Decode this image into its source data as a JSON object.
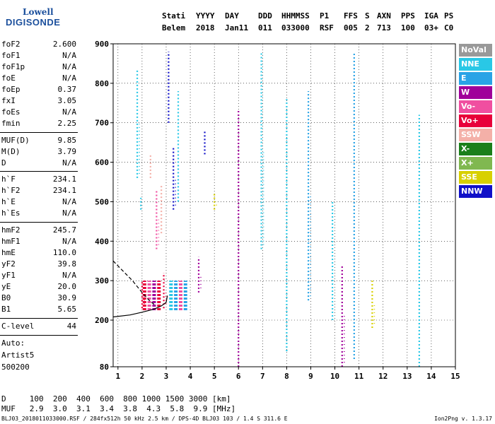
{
  "logo": {
    "top": "Lowell",
    "bottom": "DIGISONDE"
  },
  "header": {
    "labels": [
      "Stati",
      "YYYY",
      "DAY",
      "DDD",
      "HHMMSS",
      "P1",
      "FFS",
      "S",
      "AXN",
      "PPS",
      "IGA",
      "PS"
    ],
    "values": [
      "Belem",
      "2018",
      "Jan11",
      "011",
      "033000",
      "RSF",
      "005",
      "2",
      "713",
      "100",
      "03+",
      "C0"
    ]
  },
  "params": [
    {
      "k": "foF2",
      "v": "2.600"
    },
    {
      "k": "foF1",
      "v": "N/A"
    },
    {
      "k": "foF1p",
      "v": "N/A"
    },
    {
      "k": "foE",
      "v": "N/A"
    },
    {
      "k": "foEp",
      "v": "0.37"
    },
    {
      "k": "fxI",
      "v": "3.05"
    },
    {
      "k": "foEs",
      "v": "N/A"
    },
    {
      "k": "fmin",
      "v": "2.25"
    },
    {
      "k": "MUF(D)",
      "v": "9.85"
    },
    {
      "k": "M(D)",
      "v": "3.79"
    },
    {
      "k": "D",
      "v": "N/A"
    },
    {
      "k": "h`F",
      "v": "234.1"
    },
    {
      "k": "h`F2",
      "v": "234.1"
    },
    {
      "k": "h`E",
      "v": "N/A"
    },
    {
      "k": "h`Es",
      "v": "N/A"
    },
    {
      "k": "hmF2",
      "v": "245.7"
    },
    {
      "k": "hmF1",
      "v": "N/A"
    },
    {
      "k": "hmE",
      "v": "110.0"
    },
    {
      "k": "yF2",
      "v": "39.8"
    },
    {
      "k": "yF1",
      "v": "N/A"
    },
    {
      "k": "yE",
      "v": "20.0"
    },
    {
      "k": "B0",
      "v": "30.9"
    },
    {
      "k": "B1",
      "v": "5.65"
    },
    {
      "k": "C-level",
      "v": "44"
    }
  ],
  "auto": [
    "Auto:",
    "Artist5",
    "500200"
  ],
  "legend": [
    {
      "label": "NoVal",
      "color": "#999999"
    },
    {
      "label": "NNE",
      "color": "#29c8e6"
    },
    {
      "label": "E",
      "color": "#29a3e6"
    },
    {
      "label": "W",
      "color": "#a0009a"
    },
    {
      "label": "Vo-",
      "color": "#f04fa0"
    },
    {
      "label": "Vo+",
      "color": "#e8003a"
    },
    {
      "label": "SSW",
      "color": "#f4b0a8"
    },
    {
      "label": "X-",
      "color": "#1a7f1a"
    },
    {
      "label": "X+",
      "color": "#80b850"
    },
    {
      "label": "SSE",
      "color": "#d8d000"
    },
    {
      "label": "NNW",
      "color": "#1010c8"
    }
  ],
  "footer": {
    "d_row": "D     100  200  400  600  800 1000 1500 3000 [km]",
    "muf_row": "MUF   2.9  3.0  3.1  3.4  3.8  4.3  5.8  9.9 [MHz]",
    "file_info": "BLJ03_2018011033000.RSF / 284fx512h 50 kHz 2.5 km / DPS-4D BLJ03 103 / 1.4 S 311.6 E",
    "version": "Ion2Png v. 1.3.17"
  },
  "chart_data": {
    "type": "scatter",
    "title": "",
    "xlabel": "",
    "ylabel": "",
    "xlim": [
      0.8,
      15.0
    ],
    "ylim": [
      80,
      900
    ],
    "x_ticks": [
      1,
      2,
      3,
      4,
      5,
      6,
      7,
      8,
      9,
      10,
      11,
      12,
      13,
      14,
      15
    ],
    "y_ticks": [
      80,
      200,
      300,
      400,
      500,
      600,
      700,
      800,
      900
    ],
    "grid": true,
    "legend_position": "right",
    "trace_curves": [
      {
        "style": "solid",
        "points": [
          [
            0.8,
            208
          ],
          [
            1.5,
            213
          ],
          [
            2.0,
            220
          ],
          [
            2.5,
            228
          ],
          [
            2.8,
            236
          ],
          [
            3.0,
            245
          ],
          [
            3.05,
            262
          ]
        ]
      },
      {
        "style": "dashed",
        "points": [
          [
            0.8,
            350
          ],
          [
            1.2,
            325
          ],
          [
            1.6,
            300
          ],
          [
            2.0,
            270
          ],
          [
            2.3,
            250
          ],
          [
            2.5,
            240
          ]
        ]
      }
    ],
    "echo_columns": [
      {
        "x": 1.8,
        "y0": 560,
        "y1": 835,
        "color": "NNE"
      },
      {
        "x": 1.95,
        "y0": 480,
        "y1": 510,
        "color": "NNE"
      },
      {
        "x": 2.0,
        "y0": 230,
        "y1": 300,
        "color": "Vo+"
      },
      {
        "x": 2.35,
        "y0": 560,
        "y1": 620,
        "color": "SSW"
      },
      {
        "x": 2.6,
        "y0": 380,
        "y1": 530,
        "color": "Vo-"
      },
      {
        "x": 2.8,
        "y0": 420,
        "y1": 540,
        "color": "SSW"
      },
      {
        "x": 2.9,
        "y0": 230,
        "y1": 320,
        "color": "Vo+"
      },
      {
        "x": 3.1,
        "y0": 700,
        "y1": 880,
        "color": "NNW"
      },
      {
        "x": 3.3,
        "y0": 480,
        "y1": 640,
        "color": "NNW"
      },
      {
        "x": 3.5,
        "y0": 500,
        "y1": 780,
        "color": "NNE"
      },
      {
        "x": 4.35,
        "y0": 270,
        "y1": 360,
        "color": "W"
      },
      {
        "x": 4.6,
        "y0": 620,
        "y1": 680,
        "color": "NNW"
      },
      {
        "x": 5.0,
        "y0": 480,
        "y1": 520,
        "color": "SSE"
      },
      {
        "x": 6.0,
        "y0": 80,
        "y1": 730,
        "color": "W"
      },
      {
        "x": 6.95,
        "y0": 380,
        "y1": 880,
        "color": "NNE"
      },
      {
        "x": 8.0,
        "y0": 120,
        "y1": 760,
        "color": "NNE"
      },
      {
        "x": 8.9,
        "y0": 250,
        "y1": 780,
        "color": "E"
      },
      {
        "x": 9.9,
        "y0": 200,
        "y1": 500,
        "color": "NNE"
      },
      {
        "x": 10.3,
        "y0": 80,
        "y1": 340,
        "color": "W"
      },
      {
        "x": 10.8,
        "y0": 100,
        "y1": 880,
        "color": "E"
      },
      {
        "x": 11.55,
        "y0": 180,
        "y1": 300,
        "color": "SSE"
      },
      {
        "x": 13.5,
        "y0": 80,
        "y1": 720,
        "color": "NNE"
      }
    ]
  }
}
